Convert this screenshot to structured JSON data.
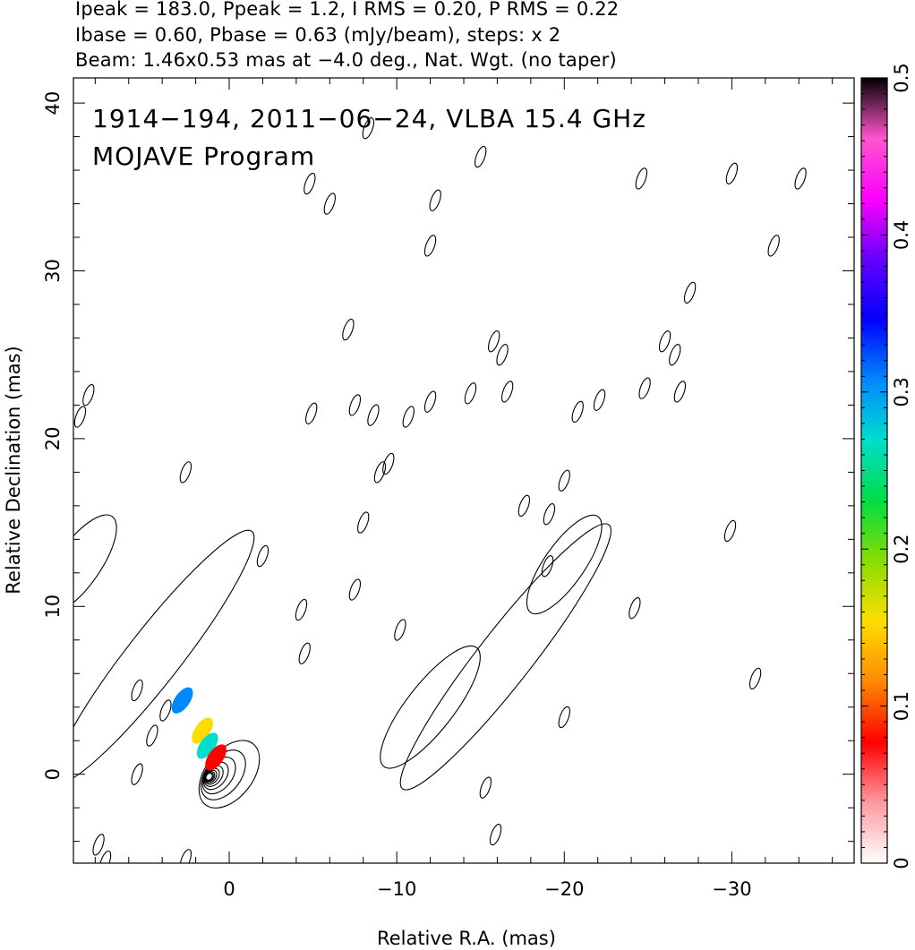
{
  "header": {
    "line1": "Ipeak = 183.0, Ppeak = 1.2, I RMS = 0.20, P RMS = 0.22",
    "line2": "Ibase = 0.60, Pbase = 0.63 (mJy/beam), steps: x 2",
    "line3": "Beam: 1.46x0.53 mas at −4.0 deg., Nat. Wgt. (no taper)"
  },
  "chart_data": {
    "type": "contour",
    "source_label": "1914−194, 2011−06−24, VLBA 15.4 GHz",
    "program_label": "MOJAVE Program",
    "xlabel": "Relative R.A. (mas)",
    "ylabel": "Relative Declination (mas)",
    "xlim": [
      9.3,
      -37.3
    ],
    "ylim": [
      -5.3,
      41.5
    ],
    "x_ticks": [
      0,
      -10,
      -20,
      -30
    ],
    "x_tick_labels": [
      "0",
      "−10",
      "−20",
      "−30"
    ],
    "y_ticks": [
      0,
      10,
      20,
      30,
      40
    ],
    "y_tick_labels": [
      "0",
      "10",
      "20",
      "30",
      "40"
    ],
    "colorbar": {
      "range": [
        0,
        0.5
      ],
      "ticks": [
        0,
        0.1,
        0.2,
        0.3,
        0.4,
        0.5
      ],
      "tick_labels": [
        "0",
        "0.1",
        "0.2",
        "0.3",
        "0.4",
        "0.5"
      ],
      "colors": [
        "#ffffff",
        "#ff9aa0",
        "#ff0000",
        "#ff8800",
        "#ffdd00",
        "#88dd00",
        "#00dd44",
        "#00ddcc",
        "#0088ff",
        "#0000ff",
        "#6600ff",
        "#ff00ff",
        "#ff55cc",
        "#000000"
      ]
    },
    "core": {
      "ra": 0,
      "dec": 0,
      "levels": 10
    },
    "jet_contours": [
      {
        "ra": 4.5,
        "dec": 7.0,
        "rx": 9.5,
        "ry": 1.6,
        "angle": 52
      },
      {
        "ra": 9.0,
        "dec": 12.5,
        "rx": 3.5,
        "ry": 1.3,
        "angle": 55
      },
      {
        "ra": -16.5,
        "dec": 7.0,
        "rx": 10.0,
        "ry": 1.6,
        "angle": 52
      },
      {
        "ra": -12.0,
        "dec": 4.0,
        "rx": 4.5,
        "ry": 1.4,
        "angle": 52
      },
      {
        "ra": -20.0,
        "dec": 12.5,
        "rx": 3.5,
        "ry": 1.2,
        "angle": 55
      }
    ],
    "polarization_blobs": [
      {
        "ra": 1.6,
        "dec": 2.6,
        "value": 0.15
      },
      {
        "ra": 1.3,
        "dec": 1.7,
        "value": 0.28
      },
      {
        "ra": 2.8,
        "dec": 4.4,
        "value": 0.3
      },
      {
        "ra": 0.8,
        "dec": 1.0,
        "value": 0.08
      }
    ],
    "small_islands": [
      [
        5.5,
        5.0
      ],
      [
        3.8,
        3.8
      ],
      [
        5.5,
        0
      ],
      [
        4.6,
        2.3
      ],
      [
        7.8,
        -4.2
      ],
      [
        7.4,
        -5.2
      ],
      [
        2.6,
        -5.1
      ],
      [
        8.4,
        22.6
      ],
      [
        8.9,
        21.3
      ],
      [
        2.6,
        18.0
      ],
      [
        -2.0,
        13.0
      ],
      [
        -4.5,
        7.2
      ],
      [
        -4.3,
        9.8
      ],
      [
        -4.9,
        21.5
      ],
      [
        -7.5,
        22.0
      ],
      [
        -8.6,
        21.4
      ],
      [
        -10.7,
        21.3
      ],
      [
        -12.0,
        22.2
      ],
      [
        -9.0,
        18.0
      ],
      [
        -9.5,
        18.5
      ],
      [
        -8.0,
        15.0
      ],
      [
        -7.5,
        11.0
      ],
      [
        -7.1,
        26.5
      ],
      [
        -6.0,
        34.0
      ],
      [
        -4.8,
        35.2
      ],
      [
        -8.3,
        38.5
      ],
      [
        -12.0,
        31.5
      ],
      [
        -12.3,
        34.2
      ],
      [
        -15.0,
        36.8
      ],
      [
        -15.8,
        25.8
      ],
      [
        -16.3,
        25.0
      ],
      [
        -14.4,
        22.7
      ],
      [
        -16.6,
        22.8
      ],
      [
        -20.8,
        21.6
      ],
      [
        -20.0,
        17.5
      ],
      [
        -22.1,
        22.3
      ],
      [
        -20.0,
        3.4
      ],
      [
        -17.6,
        16.0
      ],
      [
        -19.1,
        15.5
      ],
      [
        -24.2,
        9.9
      ],
      [
        -24.6,
        35.5
      ],
      [
        -26.0,
        25.8
      ],
      [
        -26.6,
        25.0
      ],
      [
        -24.8,
        23.0
      ],
      [
        -26.9,
        22.8
      ],
      [
        -27.5,
        28.7
      ],
      [
        -30.0,
        35.8
      ],
      [
        -34.1,
        35.5
      ],
      [
        -29.9,
        14.5
      ],
      [
        -31.4,
        5.7
      ],
      [
        -32.5,
        31.5
      ],
      [
        -19.0,
        12.4
      ],
      [
        -15.3,
        -0.8
      ],
      [
        -15.9,
        -3.6
      ],
      [
        -10.2,
        8.6
      ]
    ]
  }
}
